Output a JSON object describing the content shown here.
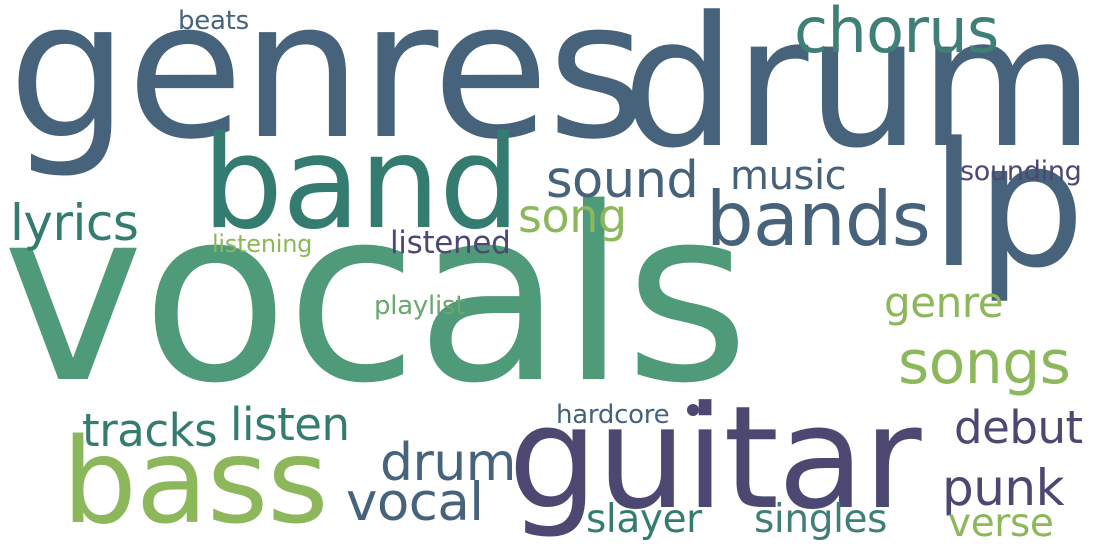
{
  "words": [
    {
      "text": "vocals",
      "color": "#4f9a78"
    },
    {
      "text": "genres",
      "color": "#46637b"
    },
    {
      "text": "drums",
      "color": "#46637b"
    },
    {
      "text": "guitar",
      "color": "#4d4872"
    },
    {
      "text": "band",
      "color": "#357c70"
    },
    {
      "text": "lp",
      "color": "#46637b"
    },
    {
      "text": "bass",
      "color": "#8cb85b"
    },
    {
      "text": "bands",
      "color": "#46637b"
    },
    {
      "text": "chorus",
      "color": "#3f7f78"
    },
    {
      "text": "songs",
      "color": "#8cb85b"
    },
    {
      "text": "sound",
      "color": "#46637b"
    },
    {
      "text": "song",
      "color": "#8cb85b"
    },
    {
      "text": "lyrics",
      "color": "#357c70"
    },
    {
      "text": "music",
      "color": "#46637b"
    },
    {
      "text": "listened",
      "color": "#4d4872"
    },
    {
      "text": "listening",
      "color": "#8cb85b"
    },
    {
      "text": "genre",
      "color": "#8cb85b"
    },
    {
      "text": "playlist",
      "color": "#6aa770"
    },
    {
      "text": "tracks",
      "color": "#357c70"
    },
    {
      "text": "listen",
      "color": "#357c70"
    },
    {
      "text": "drum",
      "color": "#46637b"
    },
    {
      "text": "vocal",
      "color": "#46637b"
    },
    {
      "text": "punk",
      "color": "#4d4872"
    },
    {
      "text": "debut",
      "color": "#4d4872"
    },
    {
      "text": "hardcore",
      "color": "#46637b"
    },
    {
      "text": "slayer",
      "color": "#357c70"
    },
    {
      "text": "singles",
      "color": "#3f7f78"
    },
    {
      "text": "verse",
      "color": "#8cb85b"
    },
    {
      "text": "beats",
      "color": "#46637b"
    },
    {
      "text": "sounding",
      "color": "#4d4872"
    }
  ]
}
